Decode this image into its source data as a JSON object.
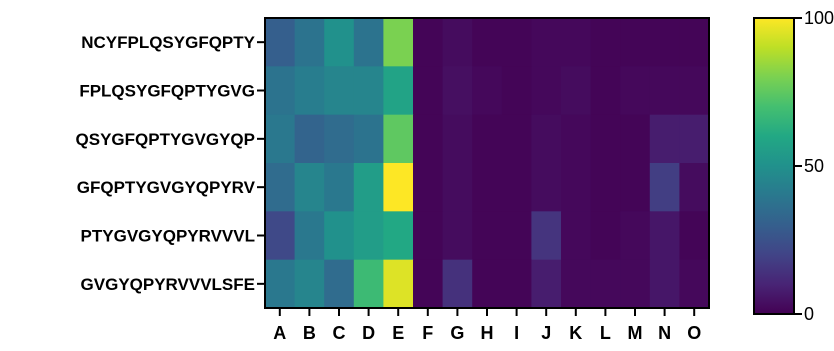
{
  "chart_data": {
    "type": "heatmap",
    "title": "",
    "xlabel": "",
    "ylabel": "",
    "x_categories": [
      "A",
      "B",
      "C",
      "D",
      "E",
      "F",
      "G",
      "H",
      "I",
      "J",
      "K",
      "L",
      "M",
      "N",
      "O"
    ],
    "y_categories": [
      "NCYFPLQSYGFQPTY",
      "FPLQSYGFQPTYGVG",
      "QSYGFQPTYGVGYQP",
      "GFQPTYGVGYQPYRV",
      "PTYGVGYQPYRVVVL",
      "GVGYQPYRVVVLSFE"
    ],
    "values": [
      [
        30,
        38,
        50,
        38,
        80,
        1,
        3,
        1,
        1,
        2,
        2,
        1,
        1,
        1,
        1
      ],
      [
        38,
        42,
        45,
        45,
        58,
        1,
        4,
        2,
        1,
        2,
        3,
        1,
        2,
        2,
        2
      ],
      [
        40,
        32,
        35,
        38,
        75,
        1,
        3,
        1,
        1,
        3,
        2,
        1,
        1,
        8,
        8
      ],
      [
        35,
        45,
        40,
        55,
        100,
        1,
        3,
        1,
        1,
        3,
        2,
        1,
        1,
        18,
        3
      ],
      [
        22,
        40,
        50,
        55,
        60,
        1,
        3,
        1,
        1,
        15,
        2,
        1,
        2,
        6,
        1
      ],
      [
        40,
        45,
        35,
        68,
        95,
        1,
        14,
        1,
        1,
        8,
        2,
        2,
        2,
        6,
        2
      ]
    ],
    "colorbar": {
      "min": 0,
      "max": 100,
      "ticks": [
        0,
        50,
        100
      ],
      "colormap": "viridis"
    },
    "grid": false,
    "legend_placement": "right"
  }
}
